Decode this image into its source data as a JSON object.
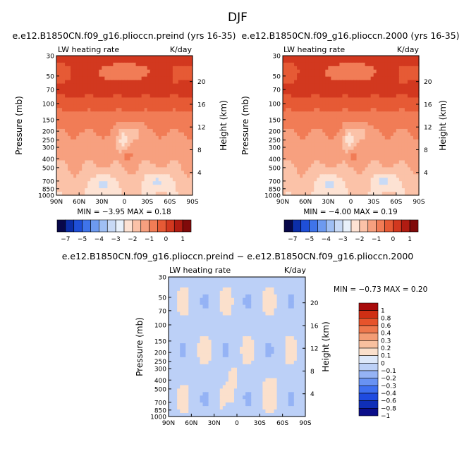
{
  "figure": {
    "title": "DJF"
  },
  "colors": {
    "levels_top": [
      "#08084a",
      "#0c2ea8",
      "#1f4fd8",
      "#3f74ea",
      "#6d9af0",
      "#9fbff4",
      "#c8daf6",
      "#e8f1fb",
      "#fde2d3",
      "#fbc2a8",
      "#f7a07f",
      "#f17c56",
      "#e65a35",
      "#d2381f",
      "#b11c12",
      "#800a0a"
    ],
    "levels_diff": [
      "#0b0e8a",
      "#0f2fb8",
      "#1f4be0",
      "#3e6ff0",
      "#6892f3",
      "#95b3f5",
      "#bcd0f7",
      "#dde8fa",
      "#fbe0cc",
      "#f8c09f",
      "#f39c74",
      "#ee784d",
      "#e6532b",
      "#cf2f14",
      "#a80b0b"
    ]
  },
  "chart_data": [
    {
      "type": "heatmap",
      "title": "e.e12.B1850CN.f09_g16.plioccn.preind (yrs 16-35)",
      "variable_label": "LW heating rate",
      "units_label": "K/day",
      "xlabel": "",
      "ylabel": "Pressure (mb)",
      "ylabel_right": "Height (km)",
      "x_ticks": [
        "90N",
        "60N",
        "30N",
        "0",
        "30S",
        "60S",
        "90S"
      ],
      "y_ticks": [
        "30",
        "50",
        "70",
        "100",
        "150",
        "200",
        "250",
        "300",
        "400",
        "500",
        "700",
        "850",
        "1000"
      ],
      "y_ticks_right": [
        "20",
        "16",
        "12",
        "8",
        "4"
      ],
      "min_max_text": "MIN = −3.95   MAX =   0.18",
      "min": -3.95,
      "max": 0.18,
      "colorbar_labels": [
        "−7",
        "−5",
        "−4",
        "−3",
        "−2",
        "−1",
        "0",
        "1"
      ]
    },
    {
      "type": "heatmap",
      "title": "e.e12.B1850CN.f09_g16.plioccn.2000 (yrs 16-35)",
      "variable_label": "LW heating rate",
      "units_label": "K/day",
      "xlabel": "",
      "ylabel": "Pressure (mb)",
      "ylabel_right": "Height (km)",
      "x_ticks": [
        "90N",
        "60N",
        "30N",
        "0",
        "30S",
        "60S",
        "90S"
      ],
      "y_ticks": [
        "30",
        "50",
        "70",
        "100",
        "150",
        "200",
        "250",
        "300",
        "400",
        "500",
        "700",
        "850",
        "1000"
      ],
      "y_ticks_right": [
        "20",
        "16",
        "12",
        "8",
        "4"
      ],
      "min_max_text": "MIN = −4.00   MAX =   0.19",
      "min": -4.0,
      "max": 0.19,
      "colorbar_labels": [
        "−7",
        "−5",
        "−4",
        "−3",
        "−2",
        "−1",
        "0",
        "1"
      ]
    },
    {
      "type": "heatmap",
      "title": "e.e12.B1850CN.f09_g16.plioccn.preind − e.e12.B1850CN.f09_g16.plioccn.2000",
      "variable_label": "LW heating rate",
      "units_label": "K/day",
      "xlabel": "",
      "ylabel": "Pressure (mb)",
      "ylabel_right": "Height (km)",
      "x_ticks": [
        "90N",
        "60N",
        "30N",
        "0",
        "30S",
        "60S",
        "90S"
      ],
      "y_ticks": [
        "30",
        "50",
        "70",
        "100",
        "150",
        "200",
        "250",
        "300",
        "400",
        "500",
        "700",
        "850",
        "1000"
      ],
      "y_ticks_right": [
        "20",
        "16",
        "12",
        "8",
        "4"
      ],
      "min_max_text": "MIN = −0.73   MAX =   0.20",
      "min": -0.73,
      "max": 0.2,
      "colorbar_labels": [
        "1",
        "0.8",
        "0.6",
        "0.4",
        "0.3",
        "0.2",
        "0.1",
        "0",
        "−0.1",
        "−0.2",
        "−0.3",
        "−0.4",
        "−0.6",
        "−0.8",
        "−1"
      ]
    }
  ]
}
